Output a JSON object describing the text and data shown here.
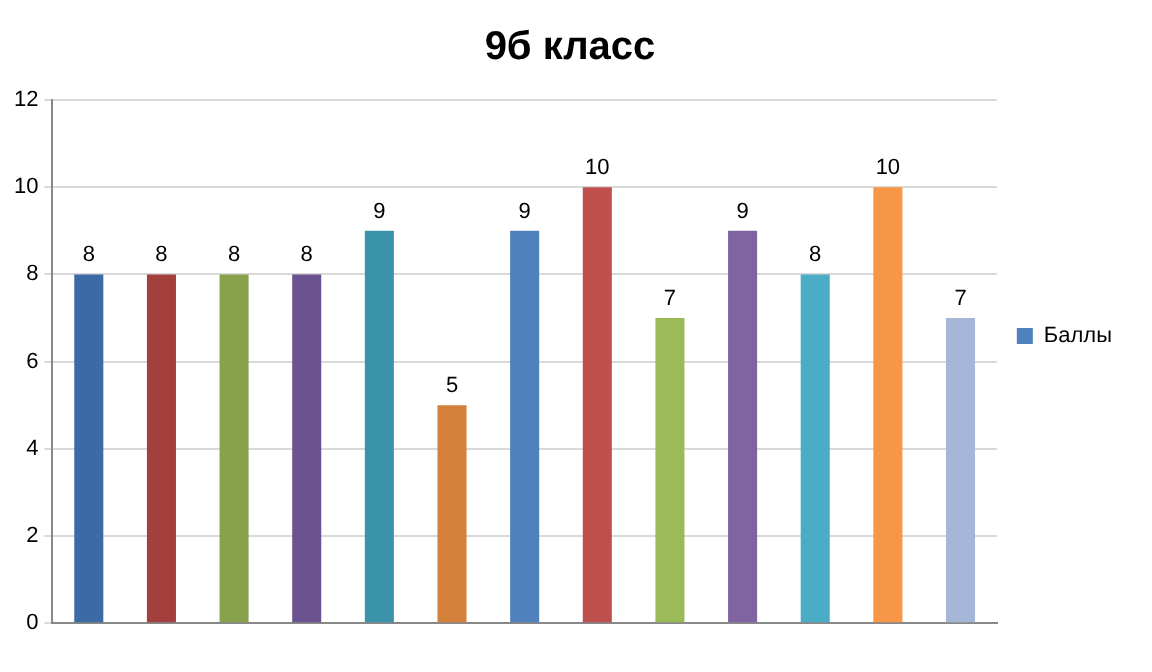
{
  "chart_data": {
    "type": "bar",
    "title": "9б класс",
    "categories": [
      null,
      null,
      null,
      null,
      null,
      null,
      null,
      null,
      null,
      null,
      null,
      null,
      null
    ],
    "series": [
      {
        "name": "Баллы",
        "color": "#4f81bd",
        "values": [
          8,
          8,
          8,
          8,
          9,
          5,
          9,
          10,
          7,
          9,
          8,
          10,
          7
        ],
        "colors": [
          "#3c6aa5",
          "#a33f3c",
          "#87a24b",
          "#6b5290",
          "#3a93a9",
          "#d3803b",
          "#4f81bd",
          "#c0504d",
          "#9bbb59",
          "#8064a2",
          "#4bacc6",
          "#f79646",
          "#a5b6d9"
        ]
      }
    ],
    "ylim": [
      0,
      12
    ],
    "yticks": [
      0,
      2,
      4,
      6,
      8,
      10,
      12
    ],
    "grid": "y",
    "legend": "right",
    "data_labels": true
  }
}
